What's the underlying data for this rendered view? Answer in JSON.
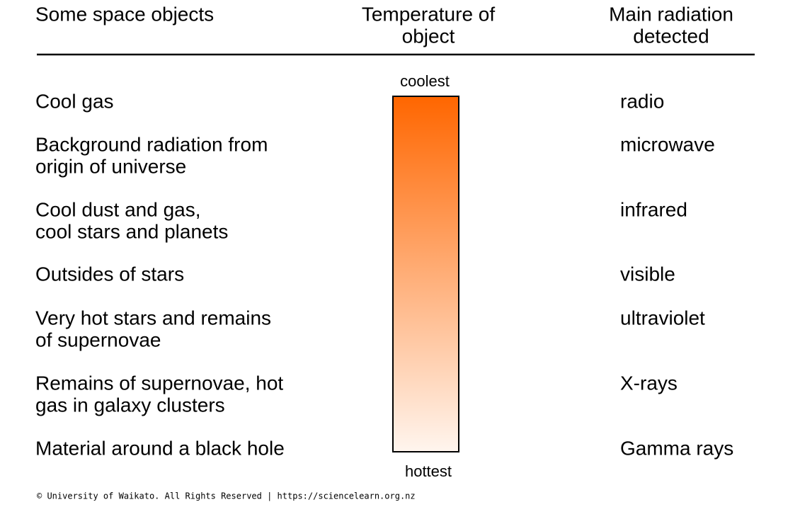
{
  "header": {
    "columns": [
      [
        "Some space objects"
      ],
      [
        "Temperature of",
        "object"
      ],
      [
        "Main radiation",
        "detected"
      ]
    ]
  },
  "rows": [
    {
      "object": [
        "Cool gas"
      ],
      "radiation": "radio"
    },
    {
      "object": [
        "Background radiation from",
        "origin of universe"
      ],
      "radiation": "microwave"
    },
    {
      "object": [
        "Cool dust and gas,",
        "cool stars and planets"
      ],
      "radiation": "infrared"
    },
    {
      "object": [
        "Outsides of stars"
      ],
      "radiation": "visible"
    },
    {
      "object": [
        "Very hot stars and remains",
        "of supernovae"
      ],
      "radiation": "ultraviolet"
    },
    {
      "object": [
        "Remains of supernovae, hot",
        "gas in galaxy clusters"
      ],
      "radiation": "X-rays"
    },
    {
      "object": [
        "Material around a black hole"
      ],
      "radiation": "Gamma rays"
    }
  ],
  "scale": {
    "top_label": "coolest",
    "bottom_label": "hottest"
  },
  "footer": "© University of Waikato. All Rights Reserved | https://sciencelearn.org.nz"
}
